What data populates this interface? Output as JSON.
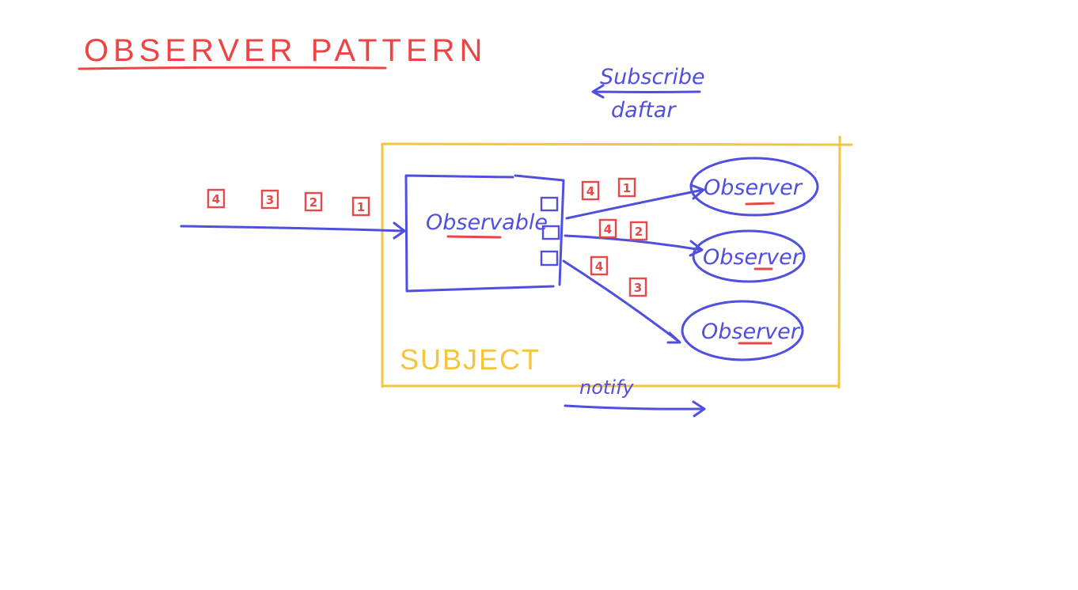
{
  "title": "OBSERVER PATTERN",
  "subscribe": {
    "label": "Subscribe",
    "sublabel": "daftar"
  },
  "subject": {
    "label": "SUBJECT"
  },
  "observable": {
    "label": "Observable"
  },
  "observers": [
    {
      "label": "Observer",
      "messages": [
        "4",
        "1"
      ]
    },
    {
      "label": "Observer",
      "messages": [
        "4",
        "2"
      ]
    },
    {
      "label": "Observer",
      "messages": [
        "4",
        "3"
      ]
    }
  ],
  "incoming_messages": [
    "4",
    "3",
    "2",
    "1"
  ],
  "notify": {
    "label": "notify"
  },
  "colors": {
    "title_red": "#ee4444",
    "stroke_blue": "#4f4fe0",
    "subject_yellow": "#f4c63e",
    "message_red": "#e84848"
  }
}
